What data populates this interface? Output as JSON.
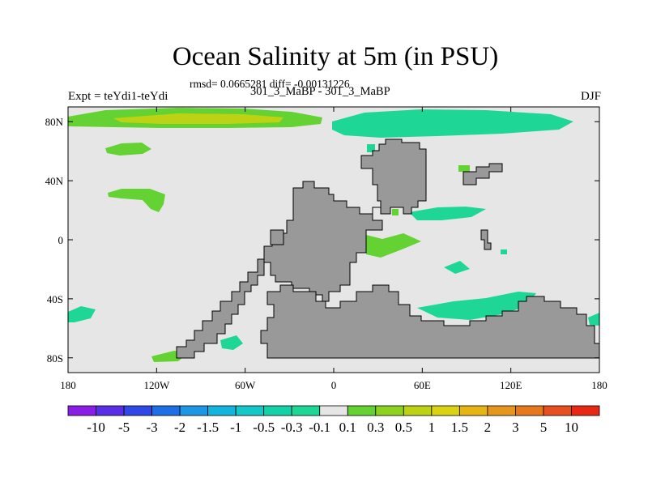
{
  "title": "Ocean Salinity at 5m (in PSU)",
  "stats": {
    "rmsd_line": "rmsd= 0.0665281 diff= -0.00131226"
  },
  "experiment_label": "Expt = teYdi1-teYdi",
  "comparison_label": "301_3_MaBP - 301_3_MaBP",
  "season_label": "DJF",
  "map": {
    "lon_range": [
      -180,
      180
    ],
    "lat_range": [
      -90,
      90
    ],
    "lon_ticks": [
      {
        "value": -180,
        "label": "180"
      },
      {
        "value": -120,
        "label": "120W"
      },
      {
        "value": -60,
        "label": "60W"
      },
      {
        "value": 0,
        "label": "0"
      },
      {
        "value": 60,
        "label": "60E"
      },
      {
        "value": 120,
        "label": "120E"
      },
      {
        "value": 180,
        "label": "180"
      }
    ],
    "lat_ticks": [
      {
        "value": 80,
        "label": "80N"
      },
      {
        "value": 40,
        "label": "40N"
      },
      {
        "value": 0,
        "label": "0"
      },
      {
        "value": -40,
        "label": "40S"
      },
      {
        "value": -80,
        "label": "80S"
      }
    ],
    "colors": {
      "ocean_neutral": "#e6e6e6",
      "land": "#999999"
    }
  },
  "colorbar": {
    "labels": [
      "-10",
      "-5",
      "-3",
      "-2",
      "-1.5",
      "-1",
      "-0.5",
      "-0.3",
      "-0.1",
      "0.1",
      "0.3",
      "0.5",
      "1",
      "1.5",
      "2",
      "3",
      "5",
      "10"
    ],
    "colors": [
      "#8a1ee6",
      "#5a2ee6",
      "#3048e6",
      "#1e6ee6",
      "#1e96e6",
      "#14b4e0",
      "#14c8c8",
      "#14d2a8",
      "#1ed796",
      "#e6e6e6",
      "#64d232",
      "#8cd21e",
      "#bed214",
      "#dcd214",
      "#e6b414",
      "#e6961e",
      "#e6781e",
      "#e6501e",
      "#e62814"
    ]
  }
}
